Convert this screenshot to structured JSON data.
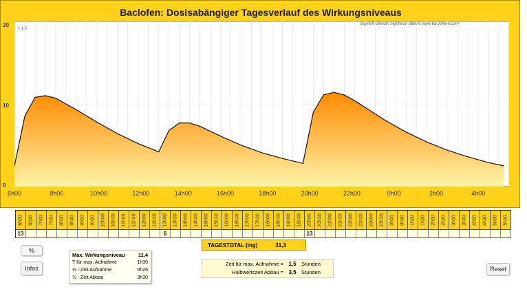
{
  "chart": {
    "title": "Baclofen: Dosisabängiger Tagesverlauf des Wirkungsniveaus",
    "version": "v 1.2",
    "copyright": "copyleft  célestin  nightwish  albéric  www.baclofene.com",
    "y_ticks": [
      "20",
      "10",
      "0"
    ],
    "x_ticks": [
      "6h00",
      "8h00",
      "10h00",
      "12h00",
      "14h00",
      "16h00",
      "18h00",
      "20h00",
      "22h00",
      "0h00",
      "2h00",
      "4h00"
    ],
    "fill_top": "#ff8a00",
    "fill_bottom": "#fff4a8"
  },
  "chart_data": {
    "type": "area",
    "title": "Baclofen: Dosisabängiger Tagesverlauf des Wirkungsniveaus",
    "xlabel": "",
    "ylabel": "",
    "ylim": [
      0,
      20
    ],
    "x_hours": [
      6,
      6.5,
      7,
      7.5,
      8,
      8.5,
      9,
      10,
      11,
      12,
      12.5,
      13,
      13.5,
      14,
      14.5,
      15,
      16,
      17,
      18,
      19,
      20,
      20.5,
      21,
      21.5,
      22,
      22.5,
      23,
      24,
      25,
      26,
      27,
      28,
      29,
      29.75
    ],
    "series": [
      {
        "values": [
          2.5,
          8.5,
          10.8,
          11.0,
          10.7,
          10.0,
          9.3,
          7.8,
          6.4,
          5.2,
          4.7,
          4.2,
          6.8,
          7.7,
          7.7,
          7.3,
          6.1,
          5.0,
          4.1,
          3.4,
          2.8,
          9.0,
          11.1,
          11.4,
          11.1,
          10.4,
          9.6,
          8.0,
          6.6,
          5.4,
          4.4,
          3.6,
          2.9,
          2.5
        ]
      }
    ]
  },
  "schedule": {
    "slots": [
      "6h00",
      "6h30",
      "7h00",
      "7h30",
      "8h00",
      "8h30",
      "9h00",
      "9h30",
      "10h00",
      "10h30",
      "11h00",
      "11h30",
      "12h00",
      "12h30",
      "13h00",
      "13h30",
      "14h00",
      "14h30",
      "15h00",
      "15h30",
      "16h00",
      "16h30",
      "17h00",
      "17h30",
      "18h00",
      "18h30",
      "19h00",
      "19h30",
      "20h00",
      "20h30",
      "21h00",
      "21h30",
      "22h00",
      "22h30",
      "23h00",
      "23h30",
      "0h00",
      "0h30",
      "1h00",
      "1h30",
      "2h00",
      "2h30",
      "3h00",
      "3h30",
      "4h00",
      "4h30",
      "5h00",
      "5h30"
    ],
    "doses": [
      "13",
      "",
      "",
      "",
      "",
      "",
      "",
      "",
      "",
      "",
      "",
      "",
      "",
      "",
      "6",
      "",
      "",
      "",
      "",
      "",
      "",
      "",
      "",
      "",
      "",
      "",
      "",
      "",
      "13",
      "",
      "",
      "",
      "",
      "",
      "",
      "",
      "",
      "",
      "",
      "",
      "",
      "",
      "",
      "",
      "",
      "",
      "",
      ""
    ]
  },
  "total": {
    "label": "TAGESTOTAL (mg)",
    "value": "31,3"
  },
  "buttons": {
    "percent": "%",
    "infos": "Infos",
    "reset": "Reset"
  },
  "info": {
    "rows": [
      {
        "label": "Max. Wirkungsniveau",
        "value": "11,4"
      },
      {
        "label": "T für max. Aufnahme",
        "value": "1h30"
      },
      {
        "label": "½ - Zeit Aufnahme",
        "value": "0h26"
      },
      {
        "label": "½ - Zeit Abbau",
        "value": "3h30"
      }
    ]
  },
  "stats": {
    "rows": [
      {
        "label": "Zeit für max. Aufnahme =",
        "value": "1,5",
        "unit": "Stunden"
      },
      {
        "label": "Halbwertszeit Abbau =",
        "value": "3,5",
        "unit": "Stunden"
      }
    ]
  }
}
